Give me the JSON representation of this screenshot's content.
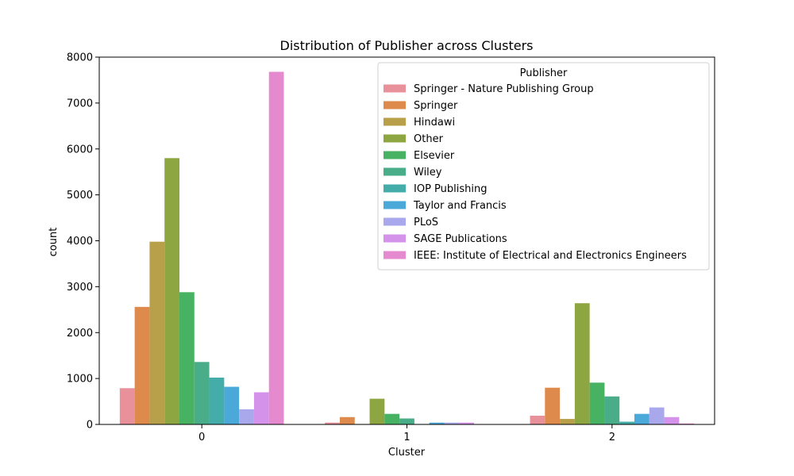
{
  "chart_data": {
    "type": "bar",
    "title": "Distribution of Publisher across Clusters",
    "xlabel": "Cluster",
    "ylabel": "count",
    "categories": [
      "0",
      "1",
      "2"
    ],
    "ylim": [
      0,
      8000
    ],
    "yticks": [
      0,
      1000,
      2000,
      3000,
      4000,
      5000,
      6000,
      7000,
      8000
    ],
    "legend_title": "Publisher",
    "legend_position": "top-right",
    "grid": false,
    "series": [
      {
        "name": "Springer - Nature Publishing Group",
        "color": "#e8919a",
        "values": [
          790,
          40,
          190
        ]
      },
      {
        "name": "Springer",
        "color": "#de8a4d",
        "values": [
          2560,
          160,
          800
        ]
      },
      {
        "name": "Hindawi",
        "color": "#b8a04a",
        "values": [
          3980,
          10,
          120
        ]
      },
      {
        "name": "Other",
        "color": "#8ea641",
        "values": [
          5800,
          560,
          2640
        ]
      },
      {
        "name": "Elsevier",
        "color": "#47b262",
        "values": [
          2880,
          230,
          910
        ]
      },
      {
        "name": "Wiley",
        "color": "#49ad8a",
        "values": [
          1360,
          130,
          610
        ]
      },
      {
        "name": "IOP Publishing",
        "color": "#44aca9",
        "values": [
          1020,
          10,
          60
        ]
      },
      {
        "name": "Taylor and Francis",
        "color": "#4aa9d8",
        "values": [
          820,
          40,
          230
        ]
      },
      {
        "name": "PLoS",
        "color": "#a9a8ec",
        "values": [
          330,
          40,
          370
        ]
      },
      {
        "name": "SAGE Publications",
        "color": "#d592ea",
        "values": [
          700,
          40,
          160
        ]
      },
      {
        "name": "IEEE: Institute of Electrical and Electronics Engineers",
        "color": "#e68ad0",
        "values": [
          7680,
          0,
          20
        ]
      }
    ]
  }
}
